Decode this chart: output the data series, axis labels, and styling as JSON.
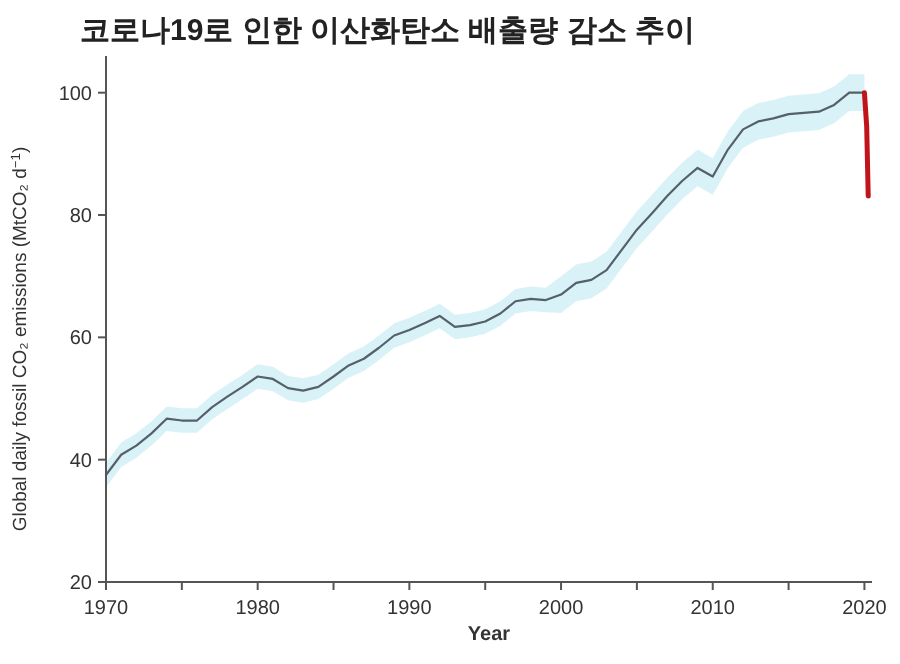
{
  "chart_data": {
    "type": "line",
    "title": "코로나19로 인한 이산화탄소 배출량 감소 추이",
    "xlabel": "Year",
    "ylabel": "Global daily fossil CO₂ emissions (MtCO₂ d$^{−1}$)",
    "xlim": [
      1970,
      2020.5
    ],
    "ylim": [
      20,
      106
    ],
    "xticks": [
      1970,
      {
        "value": 1975,
        "label": null
      },
      1980,
      {
        "value": 1985,
        "label": null
      },
      1990,
      {
        "value": 1995,
        "label": null
      },
      2000,
      {
        "value": 2005,
        "label": null
      },
      2010,
      {
        "value": 2015,
        "label": null
      },
      2020
    ],
    "yticks": [
      20,
      40,
      60,
      80,
      100
    ],
    "series": [
      {
        "color": "#55606a",
        "x": [
          1970,
          1971,
          1972,
          1973,
          1974,
          1975,
          1976,
          1977,
          1978,
          1979,
          1980,
          1981,
          1982,
          1983,
          1984,
          1985,
          1986,
          1987,
          1988,
          1989,
          1990,
          1991,
          1992,
          1993,
          1994,
          1995,
          1996,
          1997,
          1998,
          1999,
          2000,
          2001,
          2002,
          2003,
          2004,
          2005,
          2006,
          2007,
          2008,
          2009,
          2010,
          2011,
          2012,
          2013,
          2014,
          2015,
          2016,
          2017,
          2018,
          2019,
          2020
        ],
        "values": [
          37.5,
          40.8,
          42.3,
          44.3,
          46.7,
          46.4,
          46.4,
          48.6,
          50.3,
          51.9,
          53.6,
          53.2,
          51.7,
          51.3,
          51.9,
          53.6,
          55.4,
          56.5,
          58.3,
          60.3,
          61.2,
          62.3,
          63.5,
          61.7,
          62.0,
          62.6,
          63.9,
          65.9,
          66.3,
          66.1,
          67.0,
          68.9,
          69.4,
          71.0,
          74.3,
          77.6,
          80.3,
          83.1,
          85.6,
          87.7,
          86.3,
          90.7,
          94.0,
          95.3,
          95.8,
          96.5,
          96.7,
          96.9,
          98.0,
          100,
          100
        ],
        "lower": [
          35.5,
          38.8,
          40.3,
          42.3,
          44.7,
          44.4,
          44.4,
          46.6,
          48.3,
          49.9,
          51.6,
          51.2,
          49.7,
          49.3,
          49.9,
          51.6,
          53.4,
          54.5,
          56.3,
          58.3,
          59.2,
          60.3,
          61.5,
          59.7,
          60.0,
          60.6,
          61.9,
          63.9,
          64.3,
          64.1,
          64.0,
          65.9,
          66.4,
          68.0,
          71.3,
          74.6,
          77.3,
          80.1,
          82.6,
          84.7,
          83.3,
          87.7,
          91.0,
          92.3,
          92.8,
          93.5,
          93.7,
          93.9,
          95.0,
          97,
          97
        ],
        "upper": [
          39.5,
          42.8,
          44.3,
          46.3,
          48.7,
          48.4,
          48.4,
          50.6,
          52.3,
          53.9,
          55.6,
          55.2,
          53.7,
          53.3,
          53.9,
          55.6,
          57.4,
          58.5,
          60.3,
          62.3,
          63.2,
          64.3,
          65.5,
          63.7,
          64.0,
          64.6,
          65.9,
          67.9,
          68.3,
          68.1,
          70.0,
          71.9,
          72.4,
          74.0,
          77.3,
          80.6,
          83.3,
          86.1,
          88.6,
          90.7,
          89.3,
          93.7,
          97.0,
          98.3,
          98.8,
          99.5,
          99.7,
          99.9,
          101.0,
          103,
          103
        ]
      },
      {
        "color": "#c0141a",
        "x": [
          2020.0,
          2020.15,
          2020.25
        ],
        "values": [
          100,
          94.5,
          83.1
        ]
      }
    ]
  }
}
